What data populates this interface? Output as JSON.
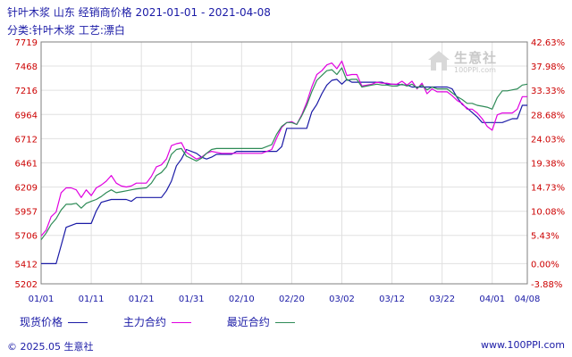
{
  "header": {
    "title": "针叶木浆 山东 经销商价格 2021-01-01 - 2021-04-08",
    "subtitle": "分类:针叶木浆 工艺:漂白"
  },
  "footer": {
    "copyright": "© 2025.05 生意社",
    "url": "www.100PPI.com"
  },
  "watermark": {
    "brand": "生意社",
    "url": "100PPI.com"
  },
  "colors": {
    "axis": "#7f7f7f",
    "grid": "#e0e0e0",
    "left_tick": "#cc0000",
    "right_tick": "#cc0000",
    "x_tick": "#1a1aa6"
  },
  "chart_data": {
    "type": "line",
    "title": "针叶木浆 山东 经销商价格 2021-01-01 - 2021-04-08",
    "xlabel": "",
    "ylabel": "",
    "x_ticks": [
      "01/01",
      "01/11",
      "01/21",
      "01/31",
      "02/10",
      "02/20",
      "03/02",
      "03/12",
      "03/22",
      "04/01",
      "04/08"
    ],
    "y_ticks": [
      "7719",
      "7468",
      "7216",
      "6964",
      "6712",
      "6461",
      "6209",
      "5957",
      "5706",
      "5412",
      "5202"
    ],
    "y2_ticks": [
      "42.63%",
      "37.98%",
      "33.33%",
      "28.68%",
      "24.03%",
      "19.38%",
      "14.73%",
      "10.08%",
      "5.43%",
      "0.00%",
      "-3.88%"
    ],
    "ylim": [
      5202,
      7719
    ],
    "grid": true,
    "legend": "bottom",
    "series": [
      {
        "name": "现货价格",
        "color": "#1a1aa6",
        "points": [
          [
            "01/01",
            5412
          ],
          [
            "01/04",
            5412
          ],
          [
            "01/05",
            5600
          ],
          [
            "01/06",
            5790
          ],
          [
            "01/08",
            5830
          ],
          [
            "01/11",
            5830
          ],
          [
            "01/12",
            5960
          ],
          [
            "01/13",
            6050
          ],
          [
            "01/15",
            6080
          ],
          [
            "01/18",
            6080
          ],
          [
            "01/19",
            6060
          ],
          [
            "01/20",
            6100
          ],
          [
            "01/25",
            6100
          ],
          [
            "01/26",
            6170
          ],
          [
            "01/27",
            6270
          ],
          [
            "01/28",
            6430
          ],
          [
            "01/29",
            6500
          ],
          [
            "01/30",
            6600
          ],
          [
            "02/01",
            6560
          ],
          [
            "02/02",
            6520
          ],
          [
            "02/03",
            6500
          ],
          [
            "02/04",
            6520
          ],
          [
            "02/05",
            6550
          ],
          [
            "02/08",
            6550
          ],
          [
            "02/09",
            6580
          ],
          [
            "02/14",
            6580
          ],
          [
            "02/16",
            6580
          ],
          [
            "02/17",
            6580
          ],
          [
            "02/18",
            6630
          ],
          [
            "02/19",
            6820
          ],
          [
            "02/23",
            6820
          ],
          [
            "02/24",
            6990
          ],
          [
            "02/25",
            7070
          ],
          [
            "02/26",
            7180
          ],
          [
            "02/27",
            7270
          ],
          [
            "02/28",
            7320
          ],
          [
            "03/01",
            7330
          ],
          [
            "03/02",
            7280
          ],
          [
            "03/03",
            7330
          ],
          [
            "03/04",
            7300
          ],
          [
            "03/05",
            7300
          ],
          [
            "03/10",
            7300
          ],
          [
            "03/11",
            7280
          ],
          [
            "03/12",
            7280
          ],
          [
            "03/15",
            7270
          ],
          [
            "03/16",
            7250
          ],
          [
            "03/20",
            7250
          ],
          [
            "03/22",
            7250
          ],
          [
            "03/23",
            7250
          ],
          [
            "03/24",
            7230
          ],
          [
            "03/25",
            7140
          ],
          [
            "03/26",
            7070
          ],
          [
            "03/27",
            7030
          ],
          [
            "03/29",
            6940
          ],
          [
            "03/30",
            6880
          ],
          [
            "04/01",
            6880
          ],
          [
            "04/03",
            6880
          ],
          [
            "04/05",
            6920
          ],
          [
            "04/06",
            6920
          ],
          [
            "04/07",
            7060
          ],
          [
            "04/08",
            7060
          ]
        ]
      },
      {
        "name": "主力合约",
        "color": "#e000e0",
        "points": [
          [
            "01/01",
            5700
          ],
          [
            "01/02",
            5760
          ],
          [
            "01/03",
            5900
          ],
          [
            "01/04",
            5950
          ],
          [
            "01/05",
            6150
          ],
          [
            "01/06",
            6200
          ],
          [
            "01/07",
            6200
          ],
          [
            "01/08",
            6180
          ],
          [
            "01/09",
            6100
          ],
          [
            "01/10",
            6180
          ],
          [
            "01/11",
            6120
          ],
          [
            "01/12",
            6200
          ],
          [
            "01/13",
            6230
          ],
          [
            "01/14",
            6270
          ],
          [
            "01/15",
            6330
          ],
          [
            "01/16",
            6250
          ],
          [
            "01/17",
            6220
          ],
          [
            "01/18",
            6210
          ],
          [
            "01/19",
            6220
          ],
          [
            "01/20",
            6250
          ],
          [
            "01/22",
            6250
          ],
          [
            "01/23",
            6320
          ],
          [
            "01/24",
            6420
          ],
          [
            "01/25",
            6440
          ],
          [
            "01/26",
            6500
          ],
          [
            "01/27",
            6640
          ],
          [
            "01/28",
            6660
          ],
          [
            "01/29",
            6670
          ],
          [
            "01/30",
            6570
          ],
          [
            "02/01",
            6500
          ],
          [
            "02/02",
            6520
          ],
          [
            "02/03",
            6560
          ],
          [
            "02/04",
            6580
          ],
          [
            "02/05",
            6570
          ],
          [
            "02/06",
            6560
          ],
          [
            "02/07",
            6560
          ],
          [
            "02/08",
            6560
          ],
          [
            "02/13",
            6560
          ],
          [
            "02/14",
            6560
          ],
          [
            "02/16",
            6600
          ],
          [
            "02/17",
            6720
          ],
          [
            "02/18",
            6830
          ],
          [
            "02/19",
            6880
          ],
          [
            "02/20",
            6890
          ],
          [
            "02/21",
            6860
          ],
          [
            "02/22",
            6960
          ],
          [
            "02/23",
            7090
          ],
          [
            "02/24",
            7250
          ],
          [
            "02/25",
            7380
          ],
          [
            "02/26",
            7420
          ],
          [
            "02/27",
            7480
          ],
          [
            "02/28",
            7500
          ],
          [
            "03/01",
            7440
          ],
          [
            "03/02",
            7520
          ],
          [
            "03/03",
            7370
          ],
          [
            "03/04",
            7380
          ],
          [
            "03/05",
            7380
          ],
          [
            "03/06",
            7260
          ],
          [
            "03/07",
            7270
          ],
          [
            "03/08",
            7280
          ],
          [
            "03/09",
            7300
          ],
          [
            "03/10",
            7290
          ],
          [
            "03/11",
            7290
          ],
          [
            "03/12",
            7280
          ],
          [
            "03/13",
            7280
          ],
          [
            "03/14",
            7310
          ],
          [
            "03/15",
            7270
          ],
          [
            "03/16",
            7310
          ],
          [
            "03/17",
            7230
          ],
          [
            "03/18",
            7290
          ],
          [
            "03/19",
            7180
          ],
          [
            "03/20",
            7230
          ],
          [
            "03/21",
            7200
          ],
          [
            "03/22",
            7200
          ],
          [
            "03/23",
            7200
          ],
          [
            "03/24",
            7160
          ],
          [
            "03/25",
            7110
          ],
          [
            "03/26",
            7080
          ],
          [
            "03/27",
            7020
          ],
          [
            "03/28",
            7020
          ],
          [
            "03/29",
            6980
          ],
          [
            "03/30",
            6920
          ],
          [
            "03/31",
            6840
          ],
          [
            "04/01",
            6800
          ],
          [
            "04/02",
            6960
          ],
          [
            "04/03",
            6980
          ],
          [
            "04/04",
            6980
          ],
          [
            "04/05",
            6980
          ],
          [
            "04/06",
            7020
          ],
          [
            "04/07",
            7150
          ],
          [
            "04/08",
            7150
          ]
        ]
      },
      {
        "name": "最近合约",
        "color": "#2e8b57",
        "points": [
          [
            "01/01",
            5660
          ],
          [
            "01/02",
            5730
          ],
          [
            "01/03",
            5820
          ],
          [
            "01/04",
            5880
          ],
          [
            "01/05",
            5970
          ],
          [
            "01/06",
            6030
          ],
          [
            "01/07",
            6030
          ],
          [
            "01/08",
            6040
          ],
          [
            "01/09",
            5990
          ],
          [
            "01/10",
            6040
          ],
          [
            "01/11",
            6060
          ],
          [
            "01/12",
            6080
          ],
          [
            "01/13",
            6110
          ],
          [
            "01/14",
            6150
          ],
          [
            "01/15",
            6180
          ],
          [
            "01/16",
            6150
          ],
          [
            "01/17",
            6160
          ],
          [
            "01/18",
            6170
          ],
          [
            "01/19",
            6180
          ],
          [
            "01/20",
            6190
          ],
          [
            "01/22",
            6200
          ],
          [
            "01/23",
            6250
          ],
          [
            "01/24",
            6330
          ],
          [
            "01/25",
            6360
          ],
          [
            "01/26",
            6420
          ],
          [
            "01/27",
            6550
          ],
          [
            "01/28",
            6600
          ],
          [
            "01/29",
            6610
          ],
          [
            "01/30",
            6530
          ],
          [
            "02/01",
            6480
          ],
          [
            "02/02",
            6510
          ],
          [
            "02/03",
            6560
          ],
          [
            "02/04",
            6600
          ],
          [
            "02/05",
            6610
          ],
          [
            "02/06",
            6610
          ],
          [
            "02/07",
            6610
          ],
          [
            "02/08",
            6610
          ],
          [
            "02/13",
            6610
          ],
          [
            "02/14",
            6610
          ],
          [
            "02/16",
            6650
          ],
          [
            "02/17",
            6760
          ],
          [
            "02/18",
            6840
          ],
          [
            "02/19",
            6880
          ],
          [
            "02/20",
            6880
          ],
          [
            "02/21",
            6860
          ],
          [
            "02/22",
            6950
          ],
          [
            "02/23",
            7060
          ],
          [
            "02/24",
            7200
          ],
          [
            "02/25",
            7320
          ],
          [
            "02/26",
            7370
          ],
          [
            "02/27",
            7420
          ],
          [
            "02/28",
            7430
          ],
          [
            "03/01",
            7380
          ],
          [
            "03/02",
            7450
          ],
          [
            "03/03",
            7320
          ],
          [
            "03/04",
            7330
          ],
          [
            "03/05",
            7330
          ],
          [
            "03/06",
            7250
          ],
          [
            "03/07",
            7260
          ],
          [
            "03/08",
            7270
          ],
          [
            "03/09",
            7280
          ],
          [
            "03/10",
            7270
          ],
          [
            "03/11",
            7270
          ],
          [
            "03/12",
            7260
          ],
          [
            "03/13",
            7260
          ],
          [
            "03/14",
            7280
          ],
          [
            "03/15",
            7260
          ],
          [
            "03/16",
            7280
          ],
          [
            "03/17",
            7240
          ],
          [
            "03/18",
            7270
          ],
          [
            "03/19",
            7220
          ],
          [
            "03/20",
            7250
          ],
          [
            "03/21",
            7230
          ],
          [
            "03/22",
            7230
          ],
          [
            "03/23",
            7230
          ],
          [
            "03/24",
            7190
          ],
          [
            "03/25",
            7150
          ],
          [
            "03/26",
            7120
          ],
          [
            "03/27",
            7080
          ],
          [
            "03/28",
            7080
          ],
          [
            "03/29",
            7060
          ],
          [
            "03/30",
            7050
          ],
          [
            "03/31",
            7040
          ],
          [
            "04/01",
            7020
          ],
          [
            "04/02",
            7140
          ],
          [
            "04/03",
            7210
          ],
          [
            "04/04",
            7210
          ],
          [
            "04/05",
            7220
          ],
          [
            "04/06",
            7230
          ],
          [
            "04/07",
            7270
          ],
          [
            "04/08",
            7280
          ]
        ]
      }
    ]
  }
}
